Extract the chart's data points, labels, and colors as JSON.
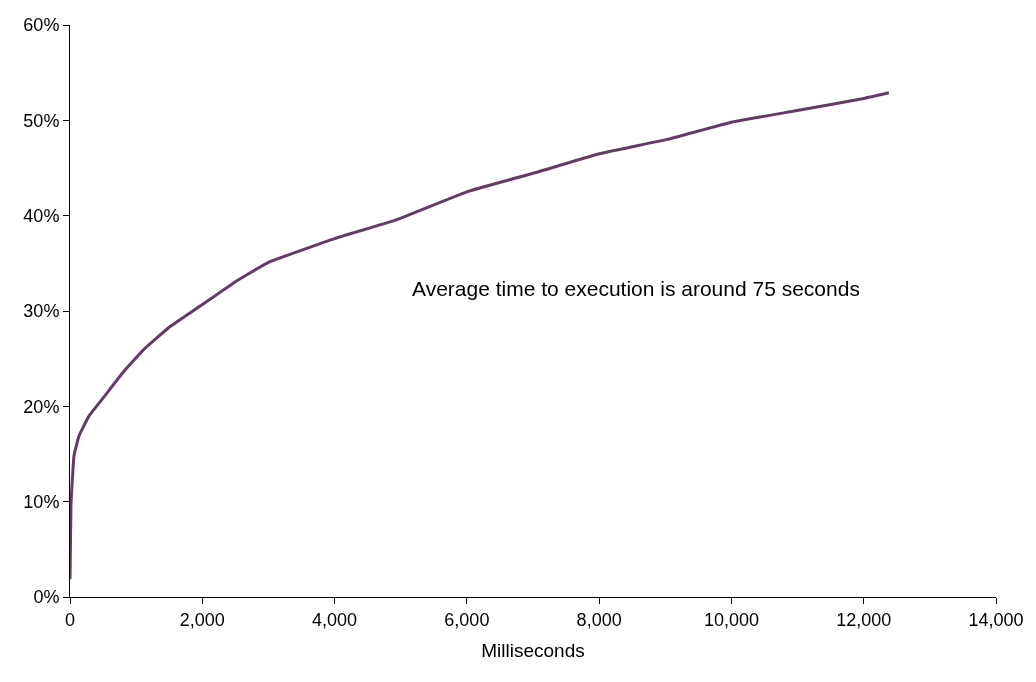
{
  "chart_data": {
    "type": "line",
    "xlabel": "Milliseconds",
    "x": [
      0,
      15,
      60,
      136,
      288,
      515,
      818,
      1121,
      1500,
      1985,
      2485,
      3000,
      4000,
      4909,
      6000,
      7030,
      8000,
      9030,
      10000,
      10970,
      12000,
      12380
    ],
    "series": [
      {
        "color": "#663a66",
        "values": [
          1.9,
          9.7,
          14.8,
          16.9,
          19,
          21,
          23.7,
          26,
          28.3,
          30.6,
          33,
          35.1,
          37.6,
          39.5,
          42.5,
          44.5,
          46.5,
          48,
          49.8,
          51,
          52.3,
          52.9
        ]
      }
    ],
    "xlim": [
      0,
      14000
    ],
    "xticks": [
      0,
      {
        "value": 2000,
        "label": "2,000"
      },
      {
        "value": 4000,
        "label": "4,000"
      },
      {
        "value": 6000,
        "label": "6,000"
      },
      {
        "value": 8000,
        "label": "8,000"
      },
      {
        "value": 10000,
        "label": "10,000"
      },
      {
        "value": 12000,
        "label": "12,000"
      },
      {
        "value": 14000,
        "label": "14,000"
      }
    ],
    "ylim": [
      0,
      60
    ],
    "yticks": [
      {
        "value": 0,
        "label": "0%"
      },
      {
        "value": 10,
        "label": "10%"
      },
      {
        "value": 20,
        "label": "20%"
      },
      {
        "value": 30,
        "label": "30%"
      },
      {
        "value": 40,
        "label": "40%"
      },
      {
        "value": 50,
        "label": "50%"
      },
      {
        "value": 60,
        "label": "60%"
      }
    ],
    "annotations": [
      "Average time to execution is around 75 seconds"
    ],
    "legend": false,
    "marker": "none",
    "line_style": "solid"
  }
}
